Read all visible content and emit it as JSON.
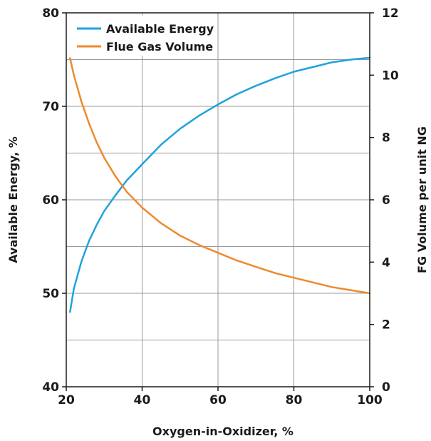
{
  "chart_data": {
    "type": "line",
    "xlabel": "Oxygen-in-Oxidizer, %",
    "ylabel": "Available Energy, %",
    "y2label": "FG Volume per unit NG",
    "xlim": [
      20,
      100
    ],
    "ylim": [
      40,
      80
    ],
    "y2lim": [
      0,
      12
    ],
    "x_ticks": [
      "20",
      "40",
      "60",
      "80",
      "100"
    ],
    "y_ticks": [
      "40",
      "50",
      "60",
      "70",
      "80"
    ],
    "y2_ticks": [
      "0",
      "2",
      "4",
      "6",
      "8",
      "10",
      "12"
    ],
    "grid": true,
    "legend": "top-left",
    "series": [
      {
        "name": "Available Energy",
        "axis": "left",
        "color": "#1fa3dc",
        "x": [
          21,
          22,
          24,
          26,
          28,
          30,
          33,
          36,
          40,
          45,
          50,
          55,
          60,
          65,
          70,
          75,
          80,
          85,
          90,
          95,
          100
        ],
        "y": [
          48.0,
          50.5,
          53.4,
          55.6,
          57.3,
          58.8,
          60.5,
          62.1,
          63.8,
          65.9,
          67.6,
          69.0,
          70.2,
          71.3,
          72.2,
          73.0,
          73.7,
          74.2,
          74.7,
          75.0,
          75.2
        ]
      },
      {
        "name": "Flue Gas Volume",
        "axis": "right",
        "color": "#ee8a2e",
        "x": [
          21,
          22,
          24,
          26,
          28,
          30,
          33,
          36,
          40,
          45,
          50,
          55,
          60,
          65,
          70,
          75,
          80,
          85,
          90,
          95,
          100
        ],
        "y": [
          10.55,
          10.0,
          9.15,
          8.45,
          7.85,
          7.35,
          6.75,
          6.25,
          5.75,
          5.25,
          4.85,
          4.55,
          4.3,
          4.05,
          3.85,
          3.65,
          3.5,
          3.35,
          3.2,
          3.1,
          3.0
        ]
      }
    ]
  }
}
